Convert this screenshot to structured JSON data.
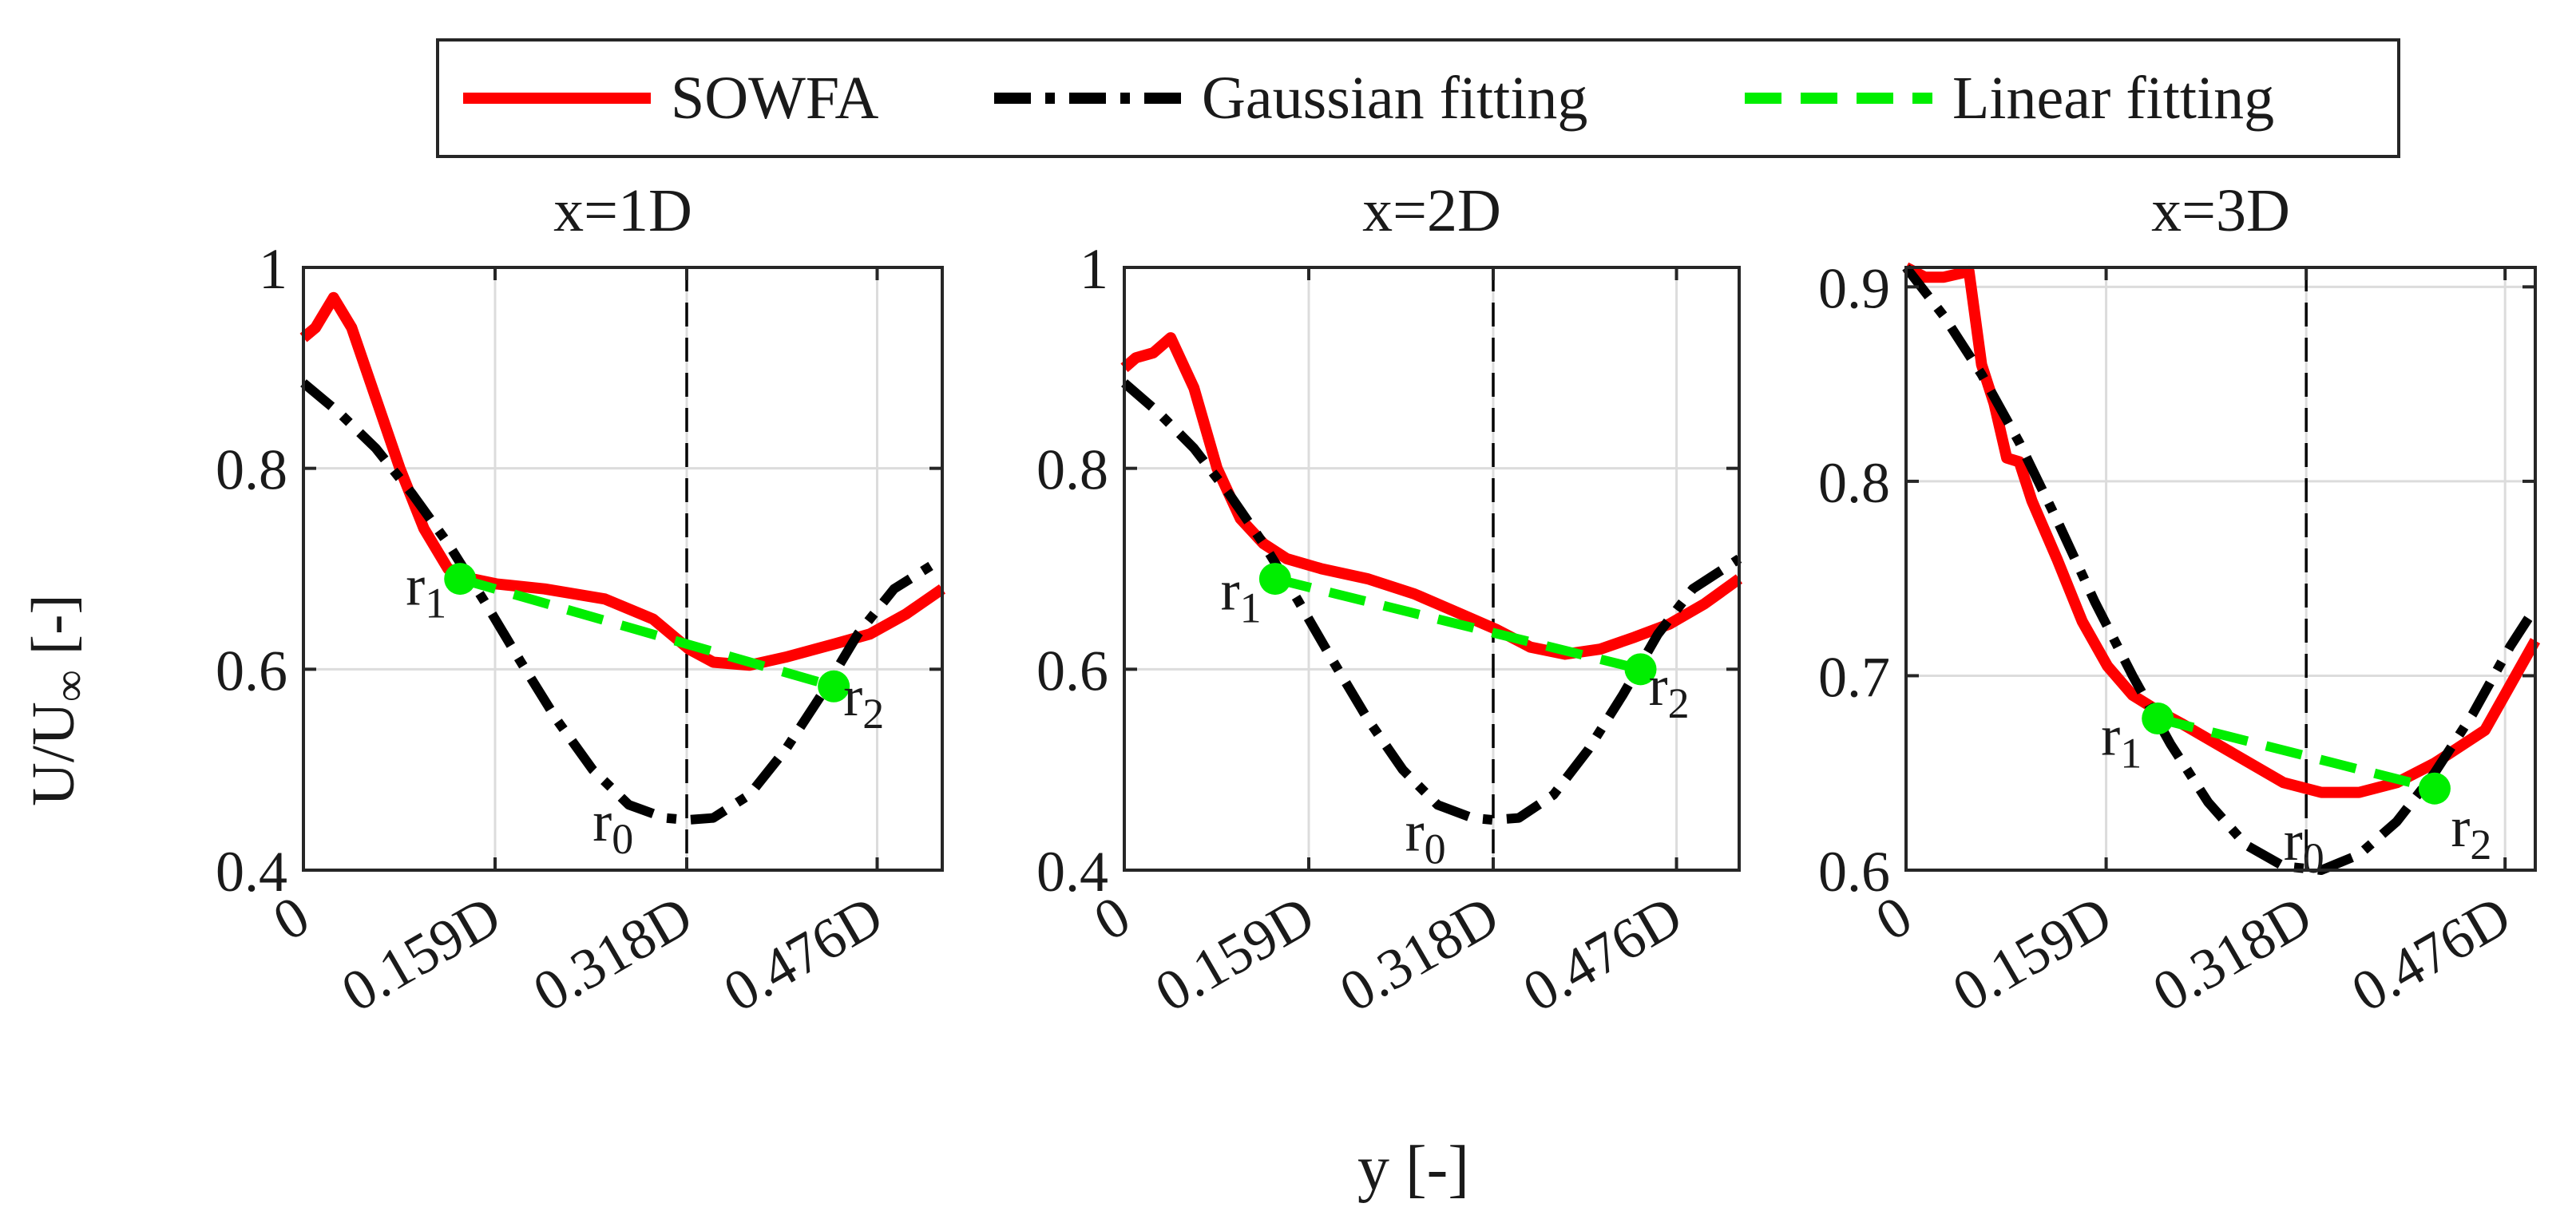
{
  "legend": {
    "items": [
      {
        "label": "SOWFA",
        "style": "solid",
        "color": "#ff0000"
      },
      {
        "label": "Gaussian fitting",
        "style": "dashdot",
        "color": "#000000"
      },
      {
        "label": "Linear fitting",
        "style": "dashed",
        "color": "#00ee00"
      }
    ]
  },
  "ylabel_main": "U/U",
  "ylabel_sub": "∞",
  "ylabel_tail": " [-]",
  "xlabel": "y [-]",
  "chart_data": [
    {
      "type": "line",
      "title": "x=1D",
      "xlim": [
        0,
        0.53
      ],
      "ylim": [
        0.4,
        1.0
      ],
      "x_ticks": [
        0,
        0.159,
        0.318,
        0.476
      ],
      "x_tick_labels": [
        "0",
        "0.159D",
        "0.318D",
        "0.476D"
      ],
      "y_ticks": [
        0.4,
        0.6,
        0.8,
        1.0
      ],
      "y_tick_labels": [
        "0.4",
        "0.6",
        "0.8",
        "1"
      ],
      "grid": true,
      "r0_line_x": 0.318,
      "series": [
        {
          "name": "SOWFA",
          "x": [
            0,
            0.01,
            0.025,
            0.04,
            0.06,
            0.08,
            0.1,
            0.12,
            0.14,
            0.16,
            0.2,
            0.25,
            0.29,
            0.32,
            0.34,
            0.37,
            0.4,
            0.44,
            0.47,
            0.5,
            0.53
          ],
          "y": [
            0.93,
            0.94,
            0.97,
            0.94,
            0.87,
            0.8,
            0.74,
            0.7,
            0.69,
            0.685,
            0.68,
            0.67,
            0.65,
            0.62,
            0.607,
            0.604,
            0.612,
            0.625,
            0.635,
            0.655,
            0.68
          ]
        },
        {
          "name": "Gaussian fitting",
          "x": [
            0,
            0.03,
            0.06,
            0.09,
            0.12,
            0.15,
            0.18,
            0.21,
            0.24,
            0.27,
            0.3,
            0.318,
            0.34,
            0.37,
            0.4,
            0.43,
            0.46,
            0.49,
            0.53
          ],
          "y": [
            0.885,
            0.855,
            0.82,
            0.775,
            0.725,
            0.668,
            0.608,
            0.55,
            0.5,
            0.465,
            0.452,
            0.45,
            0.452,
            0.475,
            0.52,
            0.575,
            0.635,
            0.68,
            0.71
          ]
        },
        {
          "name": "Linear fitting",
          "x": [
            0.13,
            0.44
          ],
          "y": [
            0.69,
            0.583
          ]
        }
      ],
      "markers": [
        {
          "label": "r",
          "sub": "1",
          "x": 0.13,
          "y": 0.69,
          "lx": 0.085,
          "ly": 0.685
        },
        {
          "label": "r",
          "sub": "2",
          "x": 0.44,
          "y": 0.583,
          "lx": 0.448,
          "ly": 0.575
        },
        {
          "label": "r",
          "sub": "0",
          "x": 0.318,
          "y": 0.45,
          "lx": 0.24,
          "ly": 0.45,
          "dot": false
        }
      ]
    },
    {
      "type": "line",
      "title": "x=2D",
      "xlim": [
        0,
        0.53
      ],
      "ylim": [
        0.4,
        1.0
      ],
      "x_ticks": [
        0,
        0.159,
        0.318,
        0.476
      ],
      "x_tick_labels": [
        "0",
        "0.159D",
        "0.318D",
        "0.476D"
      ],
      "y_ticks": [
        0.4,
        0.6,
        0.8,
        1.0
      ],
      "y_tick_labels": [
        "0.4",
        "0.6",
        "0.8",
        "1"
      ],
      "grid": true,
      "r0_line_x": 0.318,
      "series": [
        {
          "name": "SOWFA",
          "x": [
            0,
            0.01,
            0.025,
            0.04,
            0.06,
            0.08,
            0.1,
            0.12,
            0.14,
            0.17,
            0.21,
            0.25,
            0.29,
            0.32,
            0.35,
            0.38,
            0.41,
            0.44,
            0.47,
            0.5,
            0.53
          ],
          "y": [
            0.9,
            0.91,
            0.915,
            0.93,
            0.88,
            0.8,
            0.75,
            0.725,
            0.71,
            0.7,
            0.69,
            0.675,
            0.655,
            0.64,
            0.622,
            0.615,
            0.62,
            0.632,
            0.645,
            0.665,
            0.69
          ]
        },
        {
          "name": "Gaussian fitting",
          "x": [
            0,
            0.03,
            0.06,
            0.09,
            0.12,
            0.15,
            0.18,
            0.21,
            0.24,
            0.27,
            0.3,
            0.318,
            0.34,
            0.37,
            0.4,
            0.43,
            0.46,
            0.49,
            0.53
          ],
          "y": [
            0.885,
            0.855,
            0.82,
            0.775,
            0.725,
            0.668,
            0.608,
            0.55,
            0.5,
            0.465,
            0.452,
            0.45,
            0.452,
            0.475,
            0.52,
            0.575,
            0.635,
            0.68,
            0.71
          ]
        },
        {
          "name": "Linear fitting",
          "x": [
            0.13,
            0.445
          ],
          "y": [
            0.69,
            0.6
          ]
        }
      ],
      "markers": [
        {
          "label": "r",
          "sub": "1",
          "x": 0.13,
          "y": 0.69,
          "lx": 0.083,
          "ly": 0.68
        },
        {
          "label": "r",
          "sub": "2",
          "x": 0.445,
          "y": 0.6,
          "lx": 0.452,
          "ly": 0.585
        },
        {
          "label": "r",
          "sub": "0",
          "x": 0.318,
          "y": 0.45,
          "lx": 0.242,
          "ly": 0.44,
          "dot": false
        }
      ]
    },
    {
      "type": "line",
      "title": "x=3D",
      "xlim": [
        0,
        0.5
      ],
      "ylim": [
        0.6,
        0.91
      ],
      "x_ticks": [
        0,
        0.159,
        0.318,
        0.476
      ],
      "x_tick_labels": [
        "0",
        "0.159D",
        "0.318D",
        "0.476D"
      ],
      "y_ticks": [
        0.6,
        0.7,
        0.8,
        0.9
      ],
      "y_tick_labels": [
        "0.6",
        "0.7",
        "0.8",
        "0.9"
      ],
      "grid": true,
      "r0_line_x": 0.318,
      "series": [
        {
          "name": "SOWFA",
          "x": [
            0,
            0.015,
            0.03,
            0.05,
            0.06,
            0.07,
            0.08,
            0.09,
            0.1,
            0.12,
            0.14,
            0.16,
            0.18,
            0.2,
            0.22,
            0.26,
            0.3,
            0.33,
            0.36,
            0.39,
            0.42,
            0.46,
            0.5
          ],
          "y": [
            0.91,
            0.905,
            0.905,
            0.908,
            0.86,
            0.84,
            0.812,
            0.81,
            0.79,
            0.76,
            0.728,
            0.705,
            0.69,
            0.682,
            0.675,
            0.66,
            0.645,
            0.64,
            0.64,
            0.645,
            0.655,
            0.672,
            0.718
          ]
        },
        {
          "name": "Gaussian fitting",
          "x": [
            0,
            0.03,
            0.06,
            0.09,
            0.12,
            0.15,
            0.18,
            0.21,
            0.24,
            0.27,
            0.3,
            0.33,
            0.36,
            0.39,
            0.42,
            0.45,
            0.48,
            0.5
          ],
          "y": [
            0.91,
            0.885,
            0.855,
            0.82,
            0.78,
            0.738,
            0.7,
            0.665,
            0.635,
            0.613,
            0.602,
            0.6,
            0.608,
            0.625,
            0.65,
            0.68,
            0.715,
            0.735
          ]
        },
        {
          "name": "Linear fitting",
          "x": [
            0.2,
            0.42
          ],
          "y": [
            0.678,
            0.642
          ]
        }
      ],
      "markers": [
        {
          "label": "r",
          "sub": "1",
          "x": 0.2,
          "y": 0.678,
          "lx": 0.155,
          "ly": 0.67
        },
        {
          "label": "r",
          "sub": "2",
          "x": 0.42,
          "y": 0.642,
          "lx": 0.433,
          "ly": 0.623
        },
        {
          "label": "r",
          "sub": "0",
          "x": 0.318,
          "y": 0.6,
          "lx": 0.3,
          "ly": 0.616,
          "dot": false
        }
      ]
    }
  ]
}
